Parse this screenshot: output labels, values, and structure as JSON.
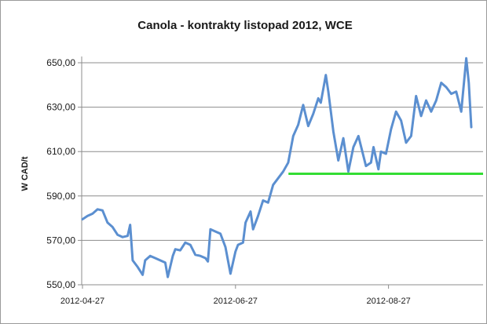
{
  "chart_data": {
    "type": "line",
    "title": "Canola - kontrakty listopad 2012, WCE",
    "xlabel": "",
    "ylabel": "W CAD/t",
    "ylim": [
      550,
      650
    ],
    "yticks": [
      550,
      570,
      590,
      610,
      630,
      650
    ],
    "ytick_labels": [
      "550,00",
      "570,00",
      "590,00",
      "610,00",
      "630,00",
      "650,00"
    ],
    "xtick_labels": [
      "2012-04-27",
      "2012-06-27",
      "2012-08-27"
    ],
    "grid": "horizontal",
    "legend": "none",
    "x": [
      "2012-04-27",
      "2012-04-29",
      "2012-05-01",
      "2012-05-03",
      "2012-05-05",
      "2012-05-07",
      "2012-05-09",
      "2012-05-11",
      "2012-05-13",
      "2012-05-15",
      "2012-05-16",
      "2012-05-17",
      "2012-05-19",
      "2012-05-21",
      "2012-05-22",
      "2012-05-24",
      "2012-05-26",
      "2012-05-28",
      "2012-05-30",
      "2012-05-31",
      "2012-06-02",
      "2012-06-03",
      "2012-06-05",
      "2012-06-07",
      "2012-06-09",
      "2012-06-11",
      "2012-06-13",
      "2012-06-15",
      "2012-06-16",
      "2012-06-17",
      "2012-06-19",
      "2012-06-21",
      "2012-06-23",
      "2012-06-25",
      "2012-06-27",
      "2012-06-28",
      "2012-06-30",
      "2012-07-01",
      "2012-07-03",
      "2012-07-04",
      "2012-07-06",
      "2012-07-08",
      "2012-07-10",
      "2012-07-12",
      "2012-07-14",
      "2012-07-16",
      "2012-07-18",
      "2012-07-20",
      "2012-07-22",
      "2012-07-24",
      "2012-07-26",
      "2012-07-28",
      "2012-07-30",
      "2012-07-31",
      "2012-08-02",
      "2012-08-03",
      "2012-08-05",
      "2012-08-07",
      "2012-08-09",
      "2012-08-11",
      "2012-08-13",
      "2012-08-15",
      "2012-08-17",
      "2012-08-18",
      "2012-08-20",
      "2012-08-21",
      "2012-08-23",
      "2012-08-24",
      "2012-08-26",
      "2012-08-28",
      "2012-08-30",
      "2012-09-01",
      "2012-09-03",
      "2012-09-05",
      "2012-09-07",
      "2012-09-09",
      "2012-09-11",
      "2012-09-13",
      "2012-09-15",
      "2012-09-17",
      "2012-09-19",
      "2012-09-21",
      "2012-09-23",
      "2012-09-25",
      "2012-09-27",
      "2012-09-28",
      "2012-09-29"
    ],
    "series": [
      {
        "name": "",
        "color": "#5b8fd0",
        "values": [
          579.5,
          581,
          582,
          584,
          583.5,
          578,
          576,
          572.5,
          571.5,
          572,
          577,
          561,
          558,
          554.5,
          561,
          563,
          562,
          561,
          560,
          553.5,
          563,
          566,
          565.5,
          569,
          568,
          563.5,
          563,
          562,
          560.5,
          575,
          574,
          573,
          567,
          555,
          565,
          568,
          569,
          578,
          583,
          575,
          581,
          588,
          587,
          595,
          598,
          601,
          605,
          617,
          622,
          631,
          621.5,
          627,
          634,
          632,
          644.5,
          637,
          619,
          606,
          616,
          601,
          612,
          617,
          608,
          603.5,
          605,
          612,
          602,
          610,
          609,
          620,
          628,
          624,
          614,
          617,
          635,
          626,
          633,
          628,
          633,
          641,
          639,
          636,
          637,
          628,
          652,
          641,
          621
        ]
      }
    ],
    "threshold": {
      "value": 600,
      "from_x": "2012-07-20",
      "color": "#33dd33"
    }
  }
}
